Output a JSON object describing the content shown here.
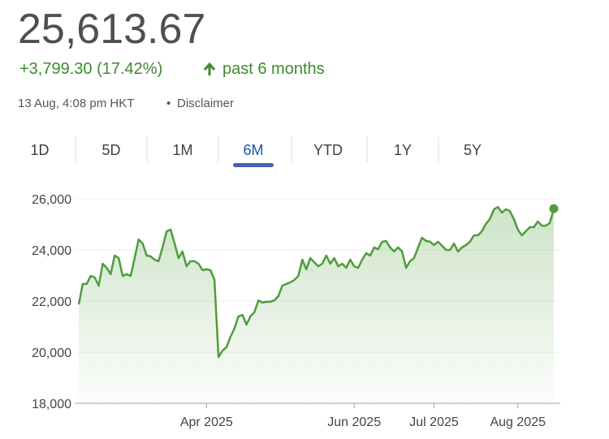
{
  "header": {
    "price": "25,613.67",
    "change": "+3,799.30 (17.42%)",
    "period": "past 6 months",
    "timestamp": "13 Aug, 4:08 pm HKT",
    "separator": "•",
    "disclaimer": "Disclaimer"
  },
  "tabs": {
    "labels": [
      "1D",
      "5D",
      "1M",
      "6M",
      "YTD",
      "1Y",
      "5Y"
    ],
    "selected": 3
  },
  "chart_data": {
    "type": "line",
    "color": "#4e9d3c",
    "grid": true,
    "ylim": [
      18000,
      26000
    ],
    "yticks": [
      {
        "value": 18000,
        "label": "18,000"
      },
      {
        "value": 20000,
        "label": "20,000"
      },
      {
        "value": 22000,
        "label": "22,000"
      },
      {
        "value": 24000,
        "label": "24,000"
      },
      {
        "value": 26000,
        "label": "26,000"
      }
    ],
    "categories": [
      null,
      null,
      null,
      null,
      null,
      null,
      null,
      null,
      null,
      null,
      null,
      null,
      null,
      null,
      null,
      null,
      null,
      null,
      null,
      null,
      null,
      null,
      null,
      null,
      null,
      null,
      null,
      null,
      null,
      null,
      null,
      null,
      "Apr 2025",
      null,
      null,
      null,
      null,
      null,
      null,
      null,
      null,
      null,
      null,
      null,
      null,
      null,
      null,
      null,
      null,
      null,
      null,
      null,
      null,
      null,
      null,
      null,
      null,
      null,
      null,
      null,
      null,
      null,
      null,
      null,
      null,
      null,
      null,
      null,
      null,
      "Jun 2025",
      null,
      null,
      null,
      null,
      null,
      null,
      null,
      null,
      null,
      null,
      null,
      null,
      null,
      null,
      null,
      null,
      null,
      null,
      null,
      "Jul 2025",
      null,
      null,
      null,
      null,
      null,
      null,
      null,
      null,
      null,
      null,
      null,
      null,
      null,
      null,
      null,
      null,
      null,
      null,
      null,
      null,
      "Aug 2025",
      null,
      null,
      null,
      null,
      null,
      null,
      null,
      null,
      null
    ],
    "values": [
      21870,
      22670,
      22670,
      22980,
      22920,
      22600,
      23460,
      23300,
      23050,
      23780,
      23680,
      22980,
      23050,
      22980,
      23680,
      24410,
      24250,
      23780,
      23750,
      23620,
      23560,
      24100,
      24730,
      24790,
      24250,
      23680,
      23940,
      23360,
      23560,
      23560,
      23460,
      23210,
      23240,
      23210,
      22830,
      19810,
      20060,
      20190,
      20600,
      20920,
      21400,
      21460,
      21080,
      21400,
      21560,
      22030,
      21940,
      21970,
      21970,
      22030,
      22190,
      22600,
      22670,
      22730,
      22830,
      22980,
      23620,
      23240,
      23680,
      23520,
      23360,
      23460,
      23780,
      23460,
      23680,
      23360,
      23460,
      23300,
      23620,
      23360,
      23300,
      23620,
      23870,
      23780,
      24100,
      24030,
      24320,
      24350,
      24100,
      23940,
      24100,
      23940,
      23300,
      23560,
      23680,
      24100,
      24480,
      24350,
      24320,
      24190,
      24320,
      24160,
      24000,
      24000,
      24250,
      23940,
      24100,
      24190,
      24320,
      24570,
      24570,
      24730,
      25020,
      25210,
      25590,
      25680,
      25460,
      25590,
      25520,
      25210,
      24790,
      24570,
      24730,
      24890,
      24890,
      25110,
      24950,
      24950,
      25050,
      25613.67
    ]
  }
}
